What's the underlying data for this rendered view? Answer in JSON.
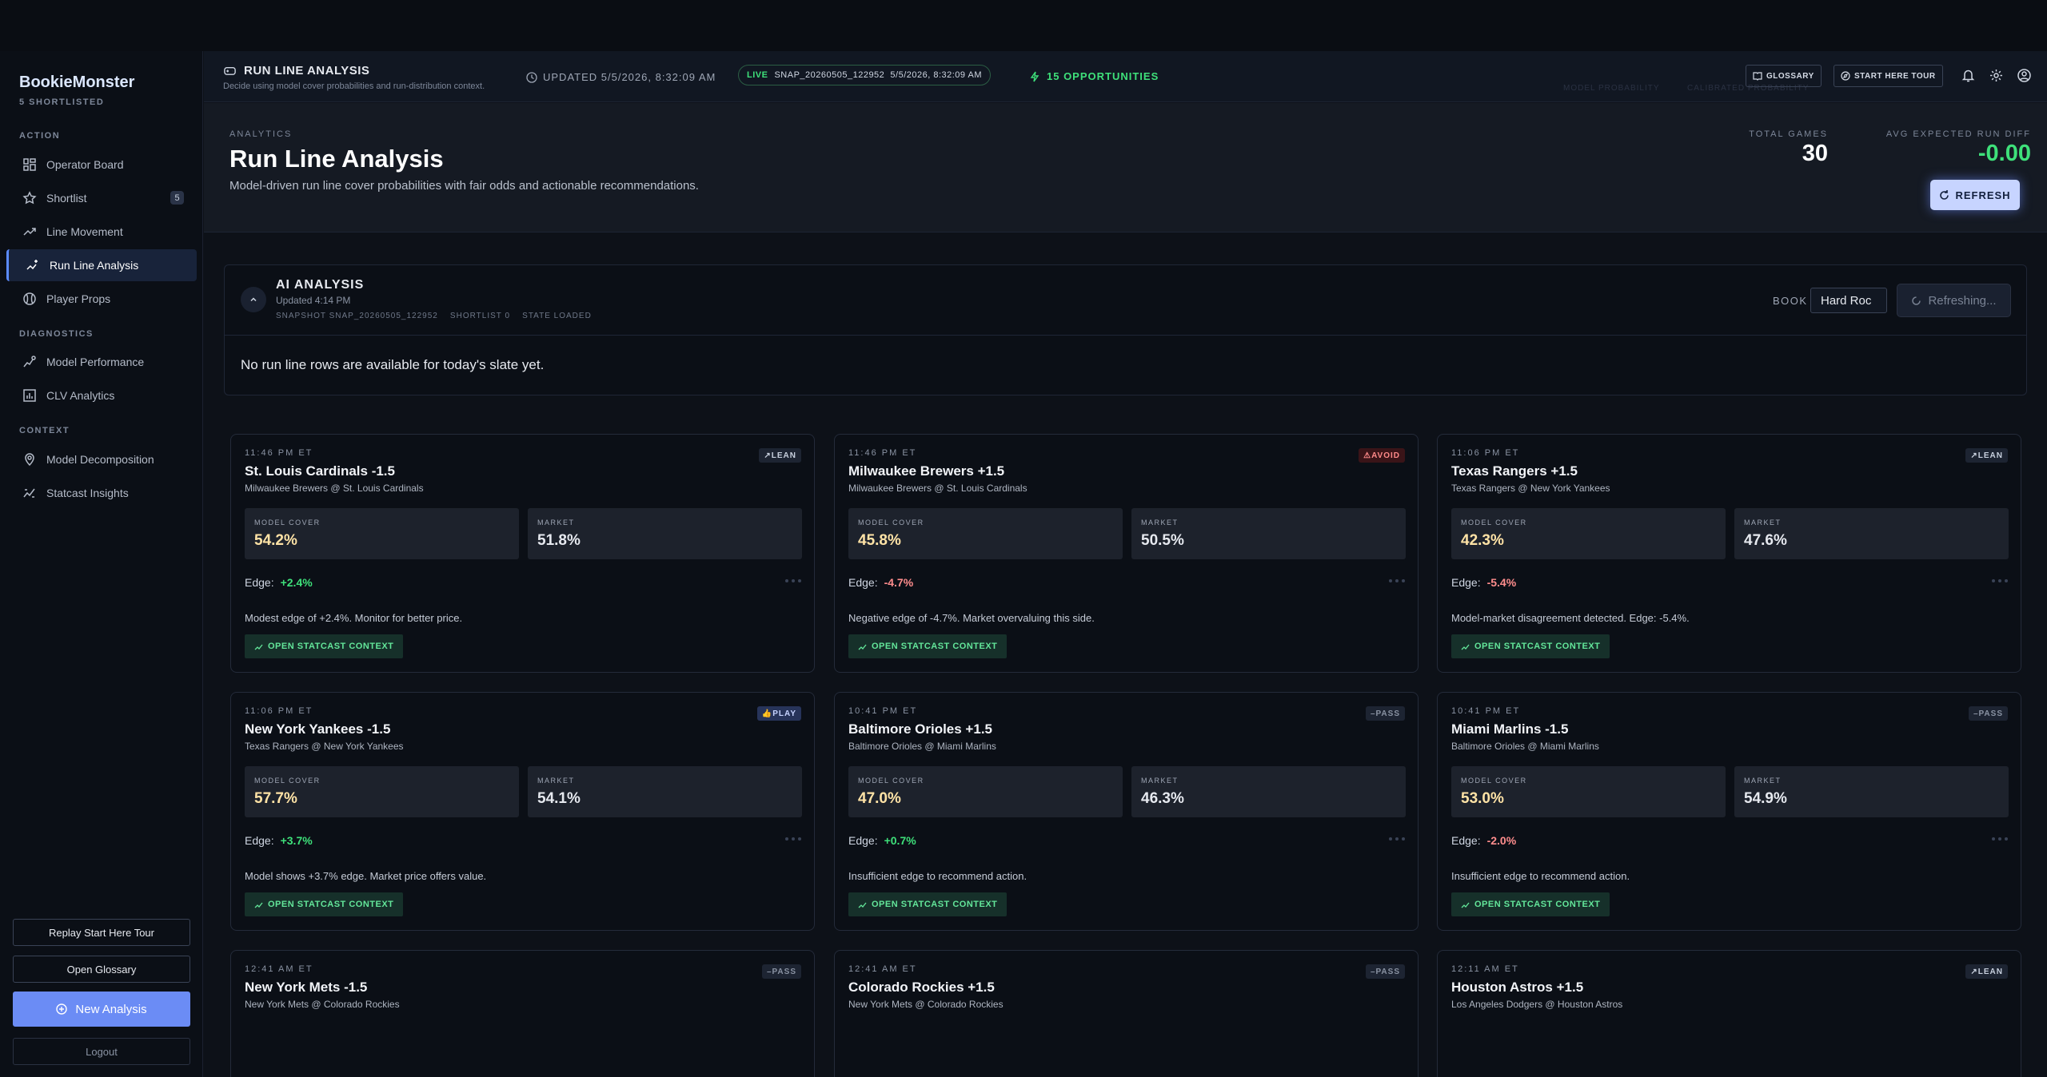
{
  "sidebar": {
    "brand": "BookieMonster",
    "subtitle": "5 SHORTLISTED",
    "sections": {
      "action": "ACTION",
      "diagnostics": "DIAGNOSTICS",
      "context": "CONTEXT"
    },
    "items": [
      {
        "label": "Operator Board",
        "icon": "grid-icon"
      },
      {
        "label": "Shortlist",
        "icon": "star-icon",
        "badge": "5"
      },
      {
        "label": "Line Movement",
        "icon": "trend-icon"
      },
      {
        "label": "Run Line Analysis",
        "icon": "sparkle-chart-icon",
        "active": true
      },
      {
        "label": "Player Props",
        "icon": "baseball-icon"
      },
      {
        "label": "Model Performance",
        "icon": "model-icon"
      },
      {
        "label": "CLV Analytics",
        "icon": "bar-chart-icon"
      },
      {
        "label": "Model Decomposition",
        "icon": "location-icon"
      },
      {
        "label": "Statcast Insights",
        "icon": "statcast-icon"
      }
    ],
    "buttons": {
      "replay_tour": "Replay Start Here Tour",
      "open_glossary": "Open Glossary",
      "new_analysis": "New Analysis",
      "logout": "Logout"
    }
  },
  "header": {
    "title": "RUN LINE ANALYSIS",
    "subtitle": "Decide using model cover probabilities and run-distribution context.",
    "updated": "UPDATED 5/5/2026, 8:32:09 AM",
    "live_label": "LIVE",
    "snapshot": "SNAP_20260505_122952  5/5/2026, 8:32:09 AM",
    "opportunities": "15 OPPORTUNITIES",
    "glossary": "GLOSSARY",
    "start_tour": "START HERE TOUR",
    "ghost_1": "MODEL PROBABILITY",
    "ghost_2": "CALIBRATED PROBABILITY"
  },
  "hero": {
    "eyebrow": "ANALYTICS",
    "title": "Run Line Analysis",
    "description": "Model-driven run line cover probabilities with fair odds and actionable recommendations.",
    "total_games_label": "TOTAL GAMES",
    "total_games": "30",
    "avg_run_diff_label": "AVG EXPECTED RUN DIFF",
    "avg_run_diff": "-0.00",
    "refresh": "REFRESH"
  },
  "ai": {
    "title": "AI ANALYSIS",
    "updated": "Updated 4:14 PM",
    "meta": "SNAPSHOT SNAP_20260505_122952    SHORTLIST 0    STATE LOADED",
    "book_label": "BOOK",
    "book_value": "Hard Roc",
    "refreshing": "Refreshing...",
    "message": "No run line rows are available for today's slate yet."
  },
  "cards": [
    {
      "time": "11:46 PM ET",
      "title": "St. Louis Cardinals -1.5",
      "matchup": "Milwaukee Brewers @ St. Louis Cardinals",
      "tag": "LEAN",
      "model_label": "MODEL COVER",
      "model": "54.2%",
      "market_label": "MARKET",
      "market": "51.8%",
      "edge_label": "Edge:",
      "edge": "+2.4%",
      "note": "Modest edge of +2.4%. Monitor for better price.",
      "action": "OPEN STATCAST CONTEXT"
    },
    {
      "time": "11:46 PM ET",
      "title": "Milwaukee Brewers +1.5",
      "matchup": "Milwaukee Brewers @ St. Louis Cardinals",
      "tag": "AVOID",
      "model_label": "MODEL COVER",
      "model": "45.8%",
      "market_label": "MARKET",
      "market": "50.5%",
      "edge_label": "Edge:",
      "edge": "-4.7%",
      "note": "Negative edge of -4.7%. Market overvaluing this side.",
      "action": "OPEN STATCAST CONTEXT"
    },
    {
      "time": "11:06 PM ET",
      "title": "Texas Rangers +1.5",
      "matchup": "Texas Rangers @ New York Yankees",
      "tag": "LEAN",
      "model_label": "MODEL COVER",
      "model": "42.3%",
      "market_label": "MARKET",
      "market": "47.6%",
      "edge_label": "Edge:",
      "edge": "-5.4%",
      "note": "Model-market disagreement detected. Edge: -5.4%.",
      "action": "OPEN STATCAST CONTEXT"
    },
    {
      "time": "11:06 PM ET",
      "title": "New York Yankees -1.5",
      "matchup": "Texas Rangers @ New York Yankees",
      "tag": "PLAY",
      "model_label": "MODEL COVER",
      "model": "57.7%",
      "market_label": "MARKET",
      "market": "54.1%",
      "edge_label": "Edge:",
      "edge": "+3.7%",
      "note": "Model shows +3.7% edge. Market price offers value.",
      "action": "OPEN STATCAST CONTEXT"
    },
    {
      "time": "10:41 PM ET",
      "title": "Baltimore Orioles +1.5",
      "matchup": "Baltimore Orioles @ Miami Marlins",
      "tag": "PASS",
      "model_label": "MODEL COVER",
      "model": "47.0%",
      "market_label": "MARKET",
      "market": "46.3%",
      "edge_label": "Edge:",
      "edge": "+0.7%",
      "note": "Insufficient edge to recommend action.",
      "action": "OPEN STATCAST CONTEXT"
    },
    {
      "time": "10:41 PM ET",
      "title": "Miami Marlins -1.5",
      "matchup": "Baltimore Orioles @ Miami Marlins",
      "tag": "PASS",
      "model_label": "MODEL COVER",
      "model": "53.0%",
      "market_label": "MARKET",
      "market": "54.9%",
      "edge_label": "Edge:",
      "edge": "-2.0%",
      "note": "Insufficient edge to recommend action.",
      "action": "OPEN STATCAST CONTEXT"
    },
    {
      "time": "12:41 AM ET",
      "title": "New York Mets -1.5",
      "matchup": "New York Mets @ Colorado Rockies",
      "tag": "PASS"
    },
    {
      "time": "12:41 AM ET",
      "title": "Colorado Rockies +1.5",
      "matchup": "New York Mets @ Colorado Rockies",
      "tag": "PASS"
    },
    {
      "time": "12:11 AM ET",
      "title": "Houston Astros +1.5",
      "matchup": "Los Angeles Dodgers @ Houston Astros",
      "tag": "LEAN"
    }
  ],
  "colors": {
    "accent": "#6b8cf5",
    "positive": "#3ee07a",
    "negative": "#ff8d8d",
    "model_highlight": "#ffe3a6"
  }
}
